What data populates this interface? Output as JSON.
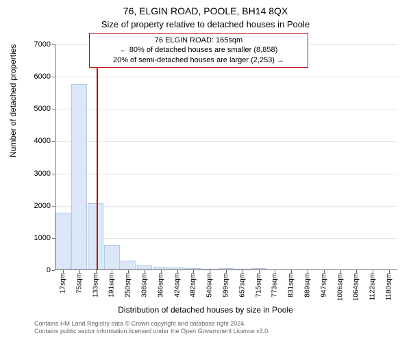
{
  "title_line1": "76, ELGIN ROAD, POOLE, BH14 8QX",
  "title_line2": "Size of property relative to detached houses in Poole",
  "annotation": {
    "line1": "76 ELGIN ROAD: 165sqm",
    "line2": "← 80% of detached houses are smaller (8,858)",
    "line3": "20% of semi-detached houses are larger (2,253) →",
    "border_color": "#c00000"
  },
  "chart": {
    "type": "bar",
    "ylabel": "Number of detached properties",
    "xlabel": "Distribution of detached houses by size in Poole",
    "y_ticks": [
      0,
      1000,
      2000,
      3000,
      4000,
      5000,
      6000,
      7000
    ],
    "ylim_max": 7000,
    "x_tick_labels": [
      "17sqm",
      "75sqm",
      "133sqm",
      "191sqm",
      "250sqm",
      "308sqm",
      "366sqm",
      "424sqm",
      "482sqm",
      "540sqm",
      "599sqm",
      "657sqm",
      "715sqm",
      "773sqm",
      "831sqm",
      "889sqm",
      "947sqm",
      "1006sqm",
      "1064sqm",
      "1122sqm",
      "1180sqm"
    ],
    "bar_values": [
      1780,
      5770,
      2070,
      790,
      300,
      150,
      100,
      80,
      60,
      50,
      60,
      50,
      60,
      0,
      0,
      0,
      0,
      0,
      0,
      0,
      0
    ],
    "bar_fill": "#dbe6f6",
    "bar_border": "#b6c8e2",
    "ref_line_index": 2.55,
    "ref_line_color": "#c00000",
    "grid_color": "#e0e0e0",
    "axis_color": "#666666",
    "background": "#ffffff"
  },
  "footer": {
    "line1": "Contains HM Land Registry data © Crown copyright and database right 2024.",
    "line2": "Contains public sector information licensed under the Open Government Licence v3.0."
  }
}
